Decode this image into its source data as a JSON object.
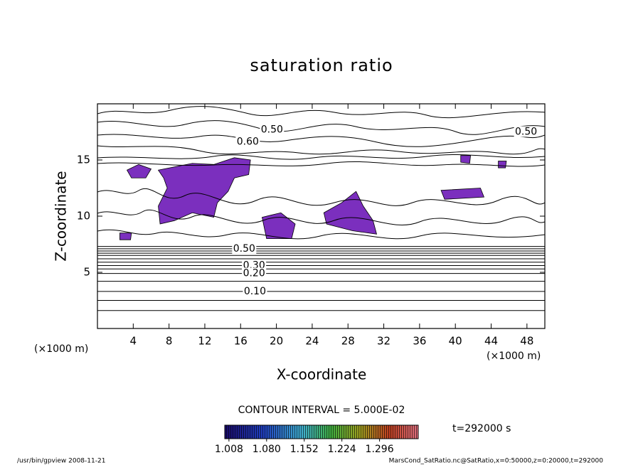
{
  "chart_data": {
    "type": "contour",
    "title": "saturation ratio",
    "xlabel": "X-coordinate",
    "ylabel": "Z-coordinate",
    "x_unit": "(×1000 m)",
    "xlim": [
      0,
      50
    ],
    "ylim": [
      0,
      20
    ],
    "xticks": [
      4,
      8,
      12,
      16,
      20,
      24,
      28,
      32,
      36,
      40,
      44,
      48
    ],
    "yticks": [
      5,
      10,
      15
    ],
    "contour_interval_label": "CONTOUR INTERVAL = 5.000E-02",
    "horizontal_contours": [
      1.6,
      2.5,
      3.3,
      4.2,
      4.9,
      5.3,
      5.6,
      5.9,
      6.2,
      6.5,
      6.7,
      6.9,
      7.1,
      7.3
    ],
    "contour_labels": [
      {
        "x": 19.5,
        "y": 17.7,
        "value": 0.5,
        "label": "0.50"
      },
      {
        "x": 16.8,
        "y": 16.6,
        "value": 0.6,
        "label": "0.60"
      },
      {
        "x": 47.9,
        "y": 17.5,
        "value": 0.5,
        "label": "0.50"
      },
      {
        "x": 16.4,
        "y": 7.1,
        "value": 0.5,
        "label": "0.50"
      },
      {
        "x": 17.5,
        "y": 5.6,
        "value": 0.3,
        "label": "0.30"
      },
      {
        "x": 17.5,
        "y": 4.9,
        "value": 0.2,
        "label": "0.20"
      },
      {
        "x": 17.6,
        "y": 3.3,
        "value": 0.1,
        "label": "0.10"
      }
    ],
    "shaded_color": "#7b2fbe",
    "shaded_regions": [
      {
        "x": [
          6.8,
          10.6,
          13.0,
          15.3,
          17.1,
          16.9,
          15.3,
          14.6,
          13.4,
          13.0,
          10.6,
          8.6,
          7.0,
          6.8,
          7.8,
          7.4
        ],
        "y": [
          14.1,
          14.7,
          14.6,
          15.2,
          15.0,
          13.7,
          13.4,
          12.2,
          11.2,
          9.9,
          10.3,
          9.6,
          9.3,
          10.9,
          12.5,
          13.4
        ]
      },
      {
        "x": [
          3.3,
          4.6,
          6.0,
          5.4,
          3.8
        ],
        "y": [
          14.1,
          14.6,
          14.2,
          13.4,
          13.4
        ]
      },
      {
        "x": [
          18.4,
          20.5,
          22.1,
          21.7,
          18.9
        ],
        "y": [
          9.9,
          10.3,
          9.3,
          8.0,
          8.0
        ]
      },
      {
        "x": [
          25.3,
          27.3,
          28.9,
          29.7,
          30.8,
          31.2,
          28.5,
          25.6
        ],
        "y": [
          10.3,
          11.2,
          12.2,
          10.9,
          9.6,
          8.4,
          8.7,
          9.3
        ]
      },
      {
        "x": [
          38.4,
          42.8,
          43.2,
          38.8
        ],
        "y": [
          12.3,
          12.5,
          11.7,
          11.5
        ]
      },
      {
        "x": [
          40.6,
          41.7,
          41.6,
          40.6
        ],
        "y": [
          15.4,
          15.4,
          14.7,
          14.8
        ]
      },
      {
        "x": [
          44.8,
          45.7,
          45.6,
          44.8
        ],
        "y": [
          14.9,
          14.9,
          14.3,
          14.3
        ]
      },
      {
        "x": [
          2.5,
          3.8,
          3.7,
          2.5
        ],
        "y": [
          8.5,
          8.5,
          7.9,
          7.9
        ]
      }
    ],
    "colorbar": {
      "clim": [
        1.0,
        1.37
      ],
      "ticks": [
        1.008,
        {
          "value": 1.08,
          "label": "1.080"
        },
        1.152,
        1.224,
        1.296
      ]
    },
    "time_label": "t=292000 s",
    "footer_left": "/usr/bin/gpview  2008-11-21",
    "footer_right": "MarsCond_SatRatio.nc@SatRatio,x=0:50000,z=0:20000,t=292000"
  }
}
